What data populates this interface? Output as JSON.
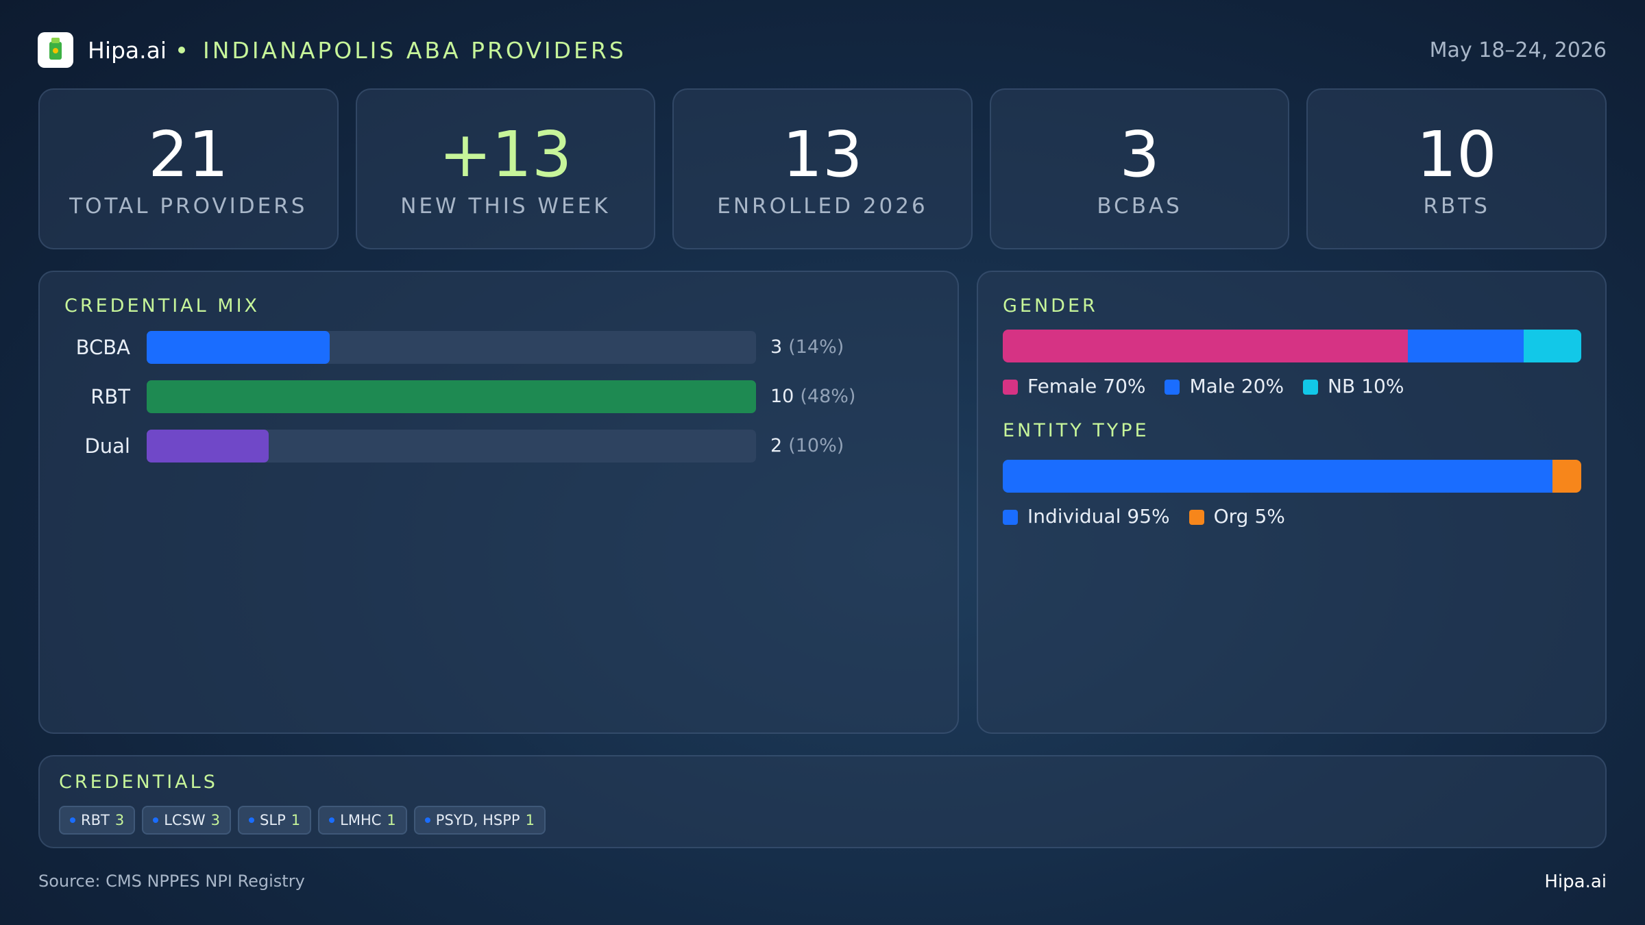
{
  "header": {
    "brand": "Hipa.ai",
    "title": "INDIANAPOLIS ABA PROVIDERS",
    "date": "May 18–24, 2026"
  },
  "kpis": [
    {
      "value": 21,
      "label": "TOTAL PROVIDERS"
    },
    {
      "value": "+13",
      "label": "NEW THIS WEEK"
    },
    {
      "value": 13,
      "label": "ENROLLED 2026"
    },
    {
      "value": 3,
      "label": "BCBAS"
    },
    {
      "value": 10,
      "label": "RBTS"
    }
  ],
  "credential_mix": {
    "title": "CREDENTIAL MIX",
    "rows": [
      {
        "label": "BCBA",
        "count": 3,
        "percent_label": "(14%)",
        "color": "#1a6dff"
      },
      {
        "label": "RBT",
        "count": 10,
        "percent_label": "(48%)",
        "color": "#1e8a52"
      },
      {
        "label": "Dual",
        "count": 2,
        "percent_label": "(10%)",
        "color": "#7048c8"
      }
    ]
  },
  "gender": {
    "title": "GENDER",
    "segments": [
      {
        "name": "Female",
        "value": 70,
        "value_label": "70%",
        "color": "#d63384"
      },
      {
        "name": "Male",
        "value": 20,
        "value_label": "20%",
        "color": "#1a6dff"
      },
      {
        "name": "NB",
        "value": 10,
        "value_label": "10%",
        "color": "#12c8e8"
      }
    ]
  },
  "entity_type": {
    "title": "ENTITY TYPE",
    "segments": [
      {
        "name": "Individual",
        "value": 95,
        "value_label": "95%",
        "color": "#1a6dff"
      },
      {
        "name": "Org",
        "value": 5,
        "value_label": "5%",
        "color": "#f7861b"
      }
    ]
  },
  "credentials": {
    "title": "CREDENTIALS",
    "chips": [
      {
        "name": "RBT",
        "count": 3
      },
      {
        "name": "LCSW",
        "count": 3
      },
      {
        "name": "SLP",
        "count": 1
      },
      {
        "name": "LMHC",
        "count": 1
      },
      {
        "name": "PSYD, HSPP",
        "count": 1
      }
    ]
  },
  "footer": {
    "source": "Source: CMS NPPES NPI Registry",
    "brand": "Hipa.ai"
  }
}
